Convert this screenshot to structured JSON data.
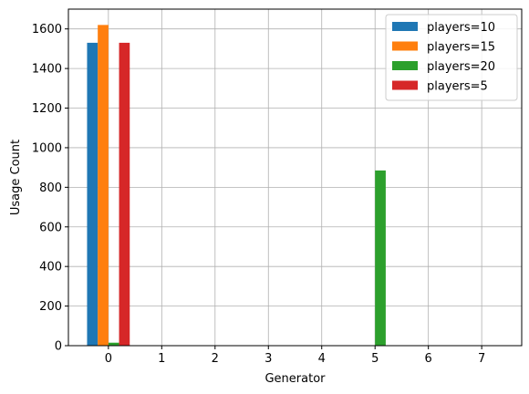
{
  "chart_data": {
    "type": "bar",
    "categories": [
      "0",
      "1",
      "2",
      "3",
      "4",
      "5",
      "6",
      "7"
    ],
    "x": [
      0,
      1,
      2,
      3,
      4,
      5,
      6,
      7
    ],
    "xlabel": "Generator",
    "ylabel": "Usage Count",
    "ylim": [
      0,
      1700
    ],
    "xlim": [
      -0.75,
      7.75
    ],
    "yticks": [
      0,
      200,
      400,
      600,
      800,
      1000,
      1200,
      1400,
      1600
    ],
    "grid": true,
    "legend_position": "top-right",
    "series": [
      {
        "name": "players=10",
        "color": "#1f77b4",
        "values": [
          1530,
          0,
          0,
          0,
          0,
          0,
          0,
          0
        ]
      },
      {
        "name": "players=15",
        "color": "#ff7f0e",
        "values": [
          1620,
          0,
          0,
          0,
          0,
          0,
          0,
          0
        ]
      },
      {
        "name": "players=20",
        "color": "#2ca02c",
        "values": [
          15,
          0,
          0,
          0,
          0,
          885,
          0,
          0
        ]
      },
      {
        "name": "players=5",
        "color": "#d62728",
        "values": [
          1530,
          0,
          0,
          0,
          0,
          0,
          0,
          0
        ]
      }
    ]
  }
}
